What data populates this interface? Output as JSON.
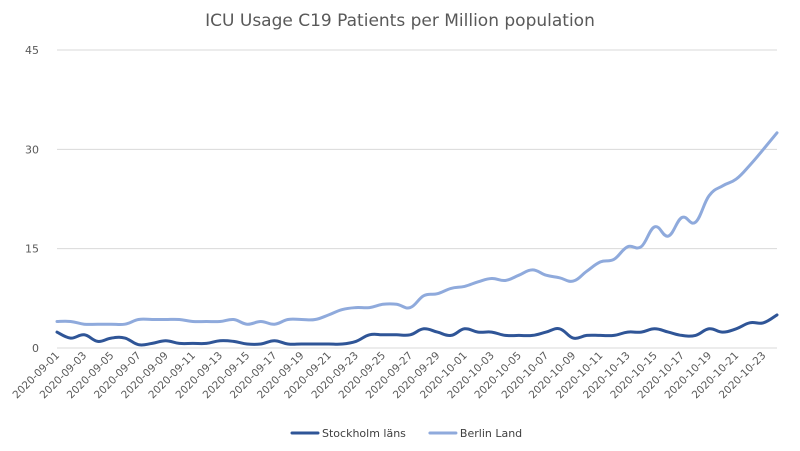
{
  "chart_data": {
    "type": "line",
    "title": "ICU Usage C19 Patients per Million population",
    "xlabel": "",
    "ylabel": "",
    "ylim": [
      0,
      45
    ],
    "yticks": [
      0,
      15,
      30,
      45
    ],
    "grid": true,
    "legend_position": "bottom",
    "x": [
      "2020-09-01",
      "2020-09-02",
      "2020-09-03",
      "2020-09-04",
      "2020-09-05",
      "2020-09-06",
      "2020-09-07",
      "2020-09-08",
      "2020-09-09",
      "2020-09-10",
      "2020-09-11",
      "2020-09-12",
      "2020-09-13",
      "2020-09-14",
      "2020-09-15",
      "2020-09-16",
      "2020-09-17",
      "2020-09-18",
      "2020-09-19",
      "2020-09-20",
      "2020-09-21",
      "2020-09-22",
      "2020-09-23",
      "2020-09-24",
      "2020-09-25",
      "2020-09-26",
      "2020-09-27",
      "2020-09-28",
      "2020-09-29",
      "2020-09-30",
      "2020-10-01",
      "2020-10-02",
      "2020-10-03",
      "2020-10-04",
      "2020-10-05",
      "2020-10-06",
      "2020-10-07",
      "2020-10-08",
      "2020-10-09",
      "2020-10-10",
      "2020-10-11",
      "2020-10-12",
      "2020-10-13",
      "2020-10-14",
      "2020-10-15",
      "2020-10-16",
      "2020-10-17",
      "2020-10-18",
      "2020-10-19",
      "2020-10-20",
      "2020-10-21",
      "2020-10-22",
      "2020-10-23",
      "2020-10-24"
    ],
    "xtick_labels": [
      "2020-09-01",
      "2020-09-03",
      "2020-09-05",
      "2020-09-07",
      "2020-09-09",
      "2020-09-11",
      "2020-09-13",
      "2020-09-15",
      "2020-09-17",
      "2020-09-19",
      "2020-09-21",
      "2020-09-23",
      "2020-09-25",
      "2020-09-27",
      "2020-09-29",
      "2020-10-01",
      "2020-10-03",
      "2020-10-05",
      "2020-10-07",
      "2020-10-09",
      "2020-10-11",
      "2020-10-13",
      "2020-10-15",
      "2020-10-17",
      "2020-10-19",
      "2020-10-21",
      "2020-10-23"
    ],
    "series": [
      {
        "name": "Stockholm läns",
        "color": "#2f5597",
        "values": [
          2.4,
          1.5,
          2.0,
          1.0,
          1.5,
          1.5,
          0.5,
          0.7,
          1.1,
          0.7,
          0.7,
          0.7,
          1.1,
          1.0,
          0.6,
          0.6,
          1.1,
          0.6,
          0.6,
          0.6,
          0.6,
          0.6,
          1.0,
          2.0,
          2.0,
          2.0,
          2.0,
          2.9,
          2.4,
          1.9,
          2.9,
          2.4,
          2.4,
          1.9,
          1.9,
          1.9,
          2.4,
          2.9,
          1.5,
          1.9,
          1.9,
          1.9,
          2.4,
          2.4,
          2.9,
          2.4,
          1.9,
          1.9,
          2.9,
          2.4,
          2.9,
          3.8,
          3.8,
          5.0
        ]
      },
      {
        "name": "Berlin Land",
        "color": "#8faadc",
        "values": [
          4.0,
          4.0,
          3.6,
          3.6,
          3.6,
          3.6,
          4.3,
          4.3,
          4.3,
          4.3,
          4.0,
          4.0,
          4.0,
          4.3,
          3.6,
          4.0,
          3.6,
          4.3,
          4.3,
          4.3,
          5.0,
          5.8,
          6.1,
          6.1,
          6.6,
          6.6,
          6.1,
          7.9,
          8.2,
          9.0,
          9.3,
          10.0,
          10.5,
          10.2,
          11.0,
          11.8,
          11.0,
          10.6,
          10.1,
          11.6,
          13.0,
          13.4,
          15.3,
          15.3,
          18.3,
          16.9,
          19.7,
          19.0,
          23.0,
          24.5,
          25.5,
          27.6,
          30.0,
          32.5
        ]
      }
    ]
  }
}
